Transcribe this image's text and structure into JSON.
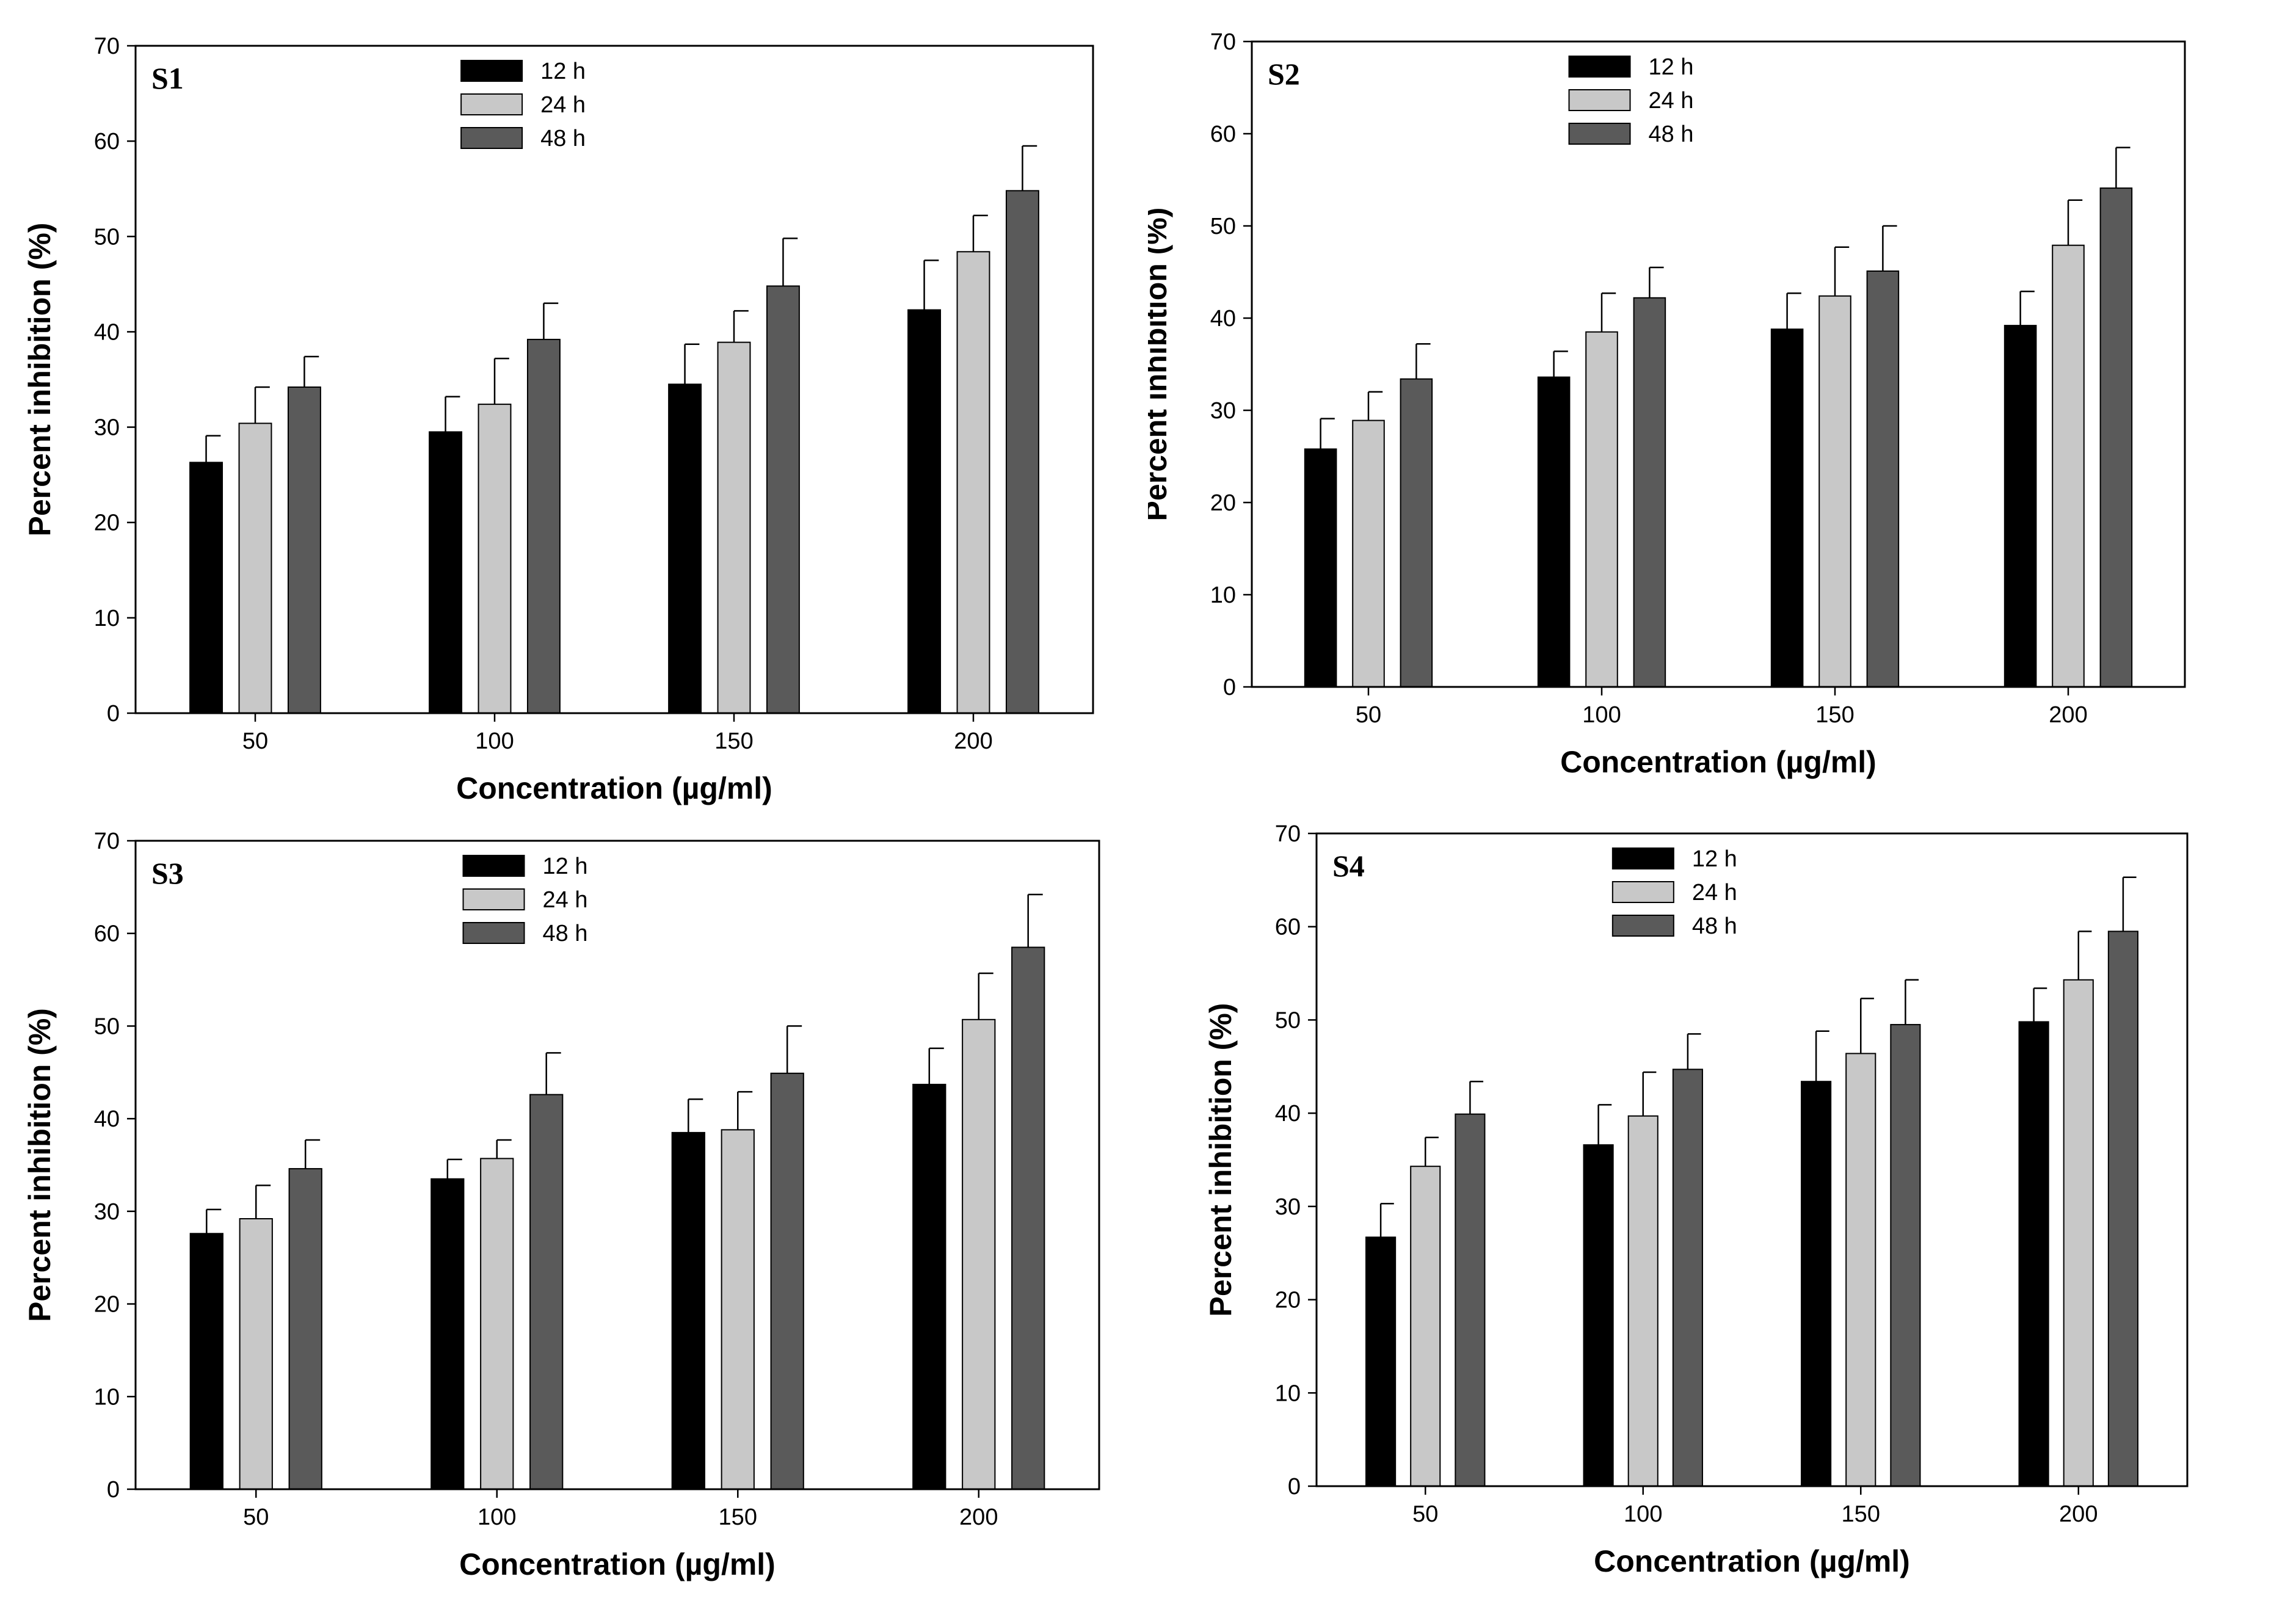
{
  "colors": {
    "12 h": "#000000",
    "24 h": "#c8c8c8",
    "48 h": "#5a5a5a"
  },
  "chart_data": [
    {
      "type": "bar",
      "title": "S1",
      "xlabel": "Concentration (µg/ml)",
      "ylabel": "Percent inhibition (%)",
      "ylim": [
        0,
        70
      ],
      "yticks": [
        0,
        10,
        20,
        30,
        40,
        50,
        60,
        70
      ],
      "categories": [
        "50",
        "100",
        "150",
        "200"
      ],
      "legend_position": "top-center",
      "series": [
        {
          "name": "12 h",
          "values": [
            26.3,
            29.5,
            34.5,
            42.3
          ],
          "errors": [
            2.8,
            3.7,
            4.2,
            5.2
          ]
        },
        {
          "name": "24 h",
          "values": [
            30.4,
            32.4,
            38.9,
            48.4
          ],
          "errors": [
            3.8,
            4.8,
            3.3,
            3.8
          ]
        },
        {
          "name": "48 h",
          "values": [
            34.2,
            39.2,
            44.8,
            54.8
          ],
          "errors": [
            3.2,
            3.8,
            5.0,
            4.7
          ]
        }
      ]
    },
    {
      "type": "bar",
      "title": "S2",
      "xlabel": "Concentration (µg/ml)",
      "ylabel": "Percent inhibition (%)",
      "ylim": [
        0,
        70
      ],
      "yticks": [
        0,
        10,
        20,
        30,
        40,
        50,
        60,
        70
      ],
      "categories": [
        "50",
        "100",
        "150",
        "200"
      ],
      "legend_position": "top-center",
      "series": [
        {
          "name": "12 h",
          "values": [
            25.8,
            33.6,
            38.8,
            39.2
          ],
          "errors": [
            3.3,
            2.8,
            3.9,
            3.7
          ]
        },
        {
          "name": "24 h",
          "values": [
            28.9,
            38.5,
            42.4,
            47.9
          ],
          "errors": [
            3.1,
            4.2,
            5.3,
            4.9
          ]
        },
        {
          "name": "48 h",
          "values": [
            33.4,
            42.2,
            45.1,
            54.1
          ],
          "errors": [
            3.8,
            3.3,
            4.9,
            4.4
          ]
        }
      ]
    },
    {
      "type": "bar",
      "title": "S3",
      "xlabel": "Concentration (µg/ml)",
      "ylabel": "Percent inhibition (%)",
      "ylim": [
        0,
        70
      ],
      "yticks": [
        0,
        10,
        20,
        30,
        40,
        50,
        60,
        70
      ],
      "categories": [
        "50",
        "100",
        "150",
        "200"
      ],
      "legend_position": "top-center",
      "series": [
        {
          "name": "12 h",
          "values": [
            27.6,
            33.5,
            38.5,
            43.7
          ],
          "errors": [
            2.6,
            2.1,
            3.6,
            3.9
          ]
        },
        {
          "name": "24 h",
          "values": [
            29.2,
            35.7,
            38.8,
            50.7
          ],
          "errors": [
            3.6,
            2.0,
            4.1,
            5.0
          ]
        },
        {
          "name": "48 h",
          "values": [
            34.6,
            42.6,
            44.9,
            58.5
          ],
          "errors": [
            3.1,
            4.5,
            5.1,
            5.7
          ]
        }
      ]
    },
    {
      "type": "bar",
      "title": "S4",
      "xlabel": "Concentration (µg/ml)",
      "ylabel": "Percent inhibition (%)",
      "ylim": [
        0,
        70
      ],
      "yticks": [
        0,
        10,
        20,
        30,
        40,
        50,
        60,
        70
      ],
      "categories": [
        "50",
        "100",
        "150",
        "200"
      ],
      "legend_position": "top-center",
      "series": [
        {
          "name": "12 h",
          "values": [
            26.7,
            36.6,
            43.4,
            49.8
          ],
          "errors": [
            3.6,
            4.3,
            5.4,
            3.6
          ]
        },
        {
          "name": "24 h",
          "values": [
            34.3,
            39.7,
            46.4,
            54.3
          ],
          "errors": [
            3.1,
            4.7,
            5.9,
            5.2
          ]
        },
        {
          "name": "48 h",
          "values": [
            39.9,
            44.7,
            49.5,
            59.5
          ],
          "errors": [
            3.5,
            3.8,
            4.8,
            5.8
          ]
        }
      ]
    }
  ]
}
